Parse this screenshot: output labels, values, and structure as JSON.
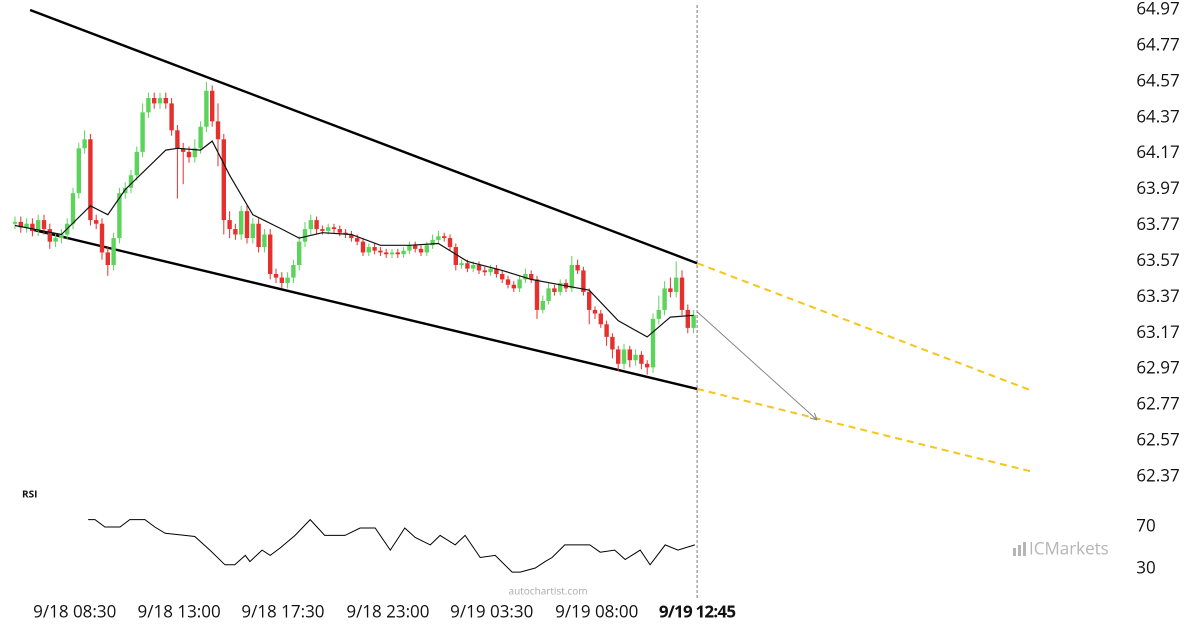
{
  "chart_data": [
    {
      "type": "candlestick",
      "up_color": "#5cd45c",
      "down_color": "#e6302e",
      "xlim": [
        -2.5,
        197.5
      ],
      "ylim": [
        62.25,
        65.0
      ],
      "yticks": [
        64.97,
        64.77,
        64.57,
        64.37,
        64.17,
        63.97,
        63.77,
        63.57,
        63.37,
        63.17,
        62.97,
        62.77,
        62.57,
        62.37
      ],
      "xticks": [
        {
          "value": 10.3,
          "label": "9/18 08:30"
        },
        {
          "value": 28.3,
          "label": "9/18 13:00"
        },
        {
          "value": 46.2,
          "label": "9/18 17:30"
        },
        {
          "value": 64.3,
          "label": "9/18 23:00"
        },
        {
          "value": 82.2,
          "label": "9/19 03:30"
        },
        {
          "value": 100.3,
          "label": "9/19 08:00"
        },
        {
          "value": 117.6,
          "label": "9/19 12:45"
        }
      ],
      "open": [
        63.78,
        63.79,
        63.76,
        63.78,
        63.74,
        63.8,
        63.75,
        63.68,
        63.7,
        63.72,
        63.78,
        63.95,
        64.2,
        64.25,
        63.8,
        63.78,
        63.62,
        63.55,
        63.7,
        63.95,
        63.98,
        64.05,
        64.18,
        64.4,
        64.48,
        64.45,
        64.48,
        64.45,
        64.3,
        64.2,
        64.18,
        64.15,
        64.2,
        64.32,
        64.52,
        64.35,
        64.25,
        63.8,
        63.75,
        63.72,
        63.85,
        63.7,
        63.78,
        63.65,
        63.72,
        63.5,
        63.48,
        63.45,
        63.48,
        63.55,
        63.68,
        63.75,
        63.8,
        63.75,
        63.74,
        63.76,
        63.75,
        63.73,
        63.72,
        63.7,
        63.68,
        63.62,
        63.65,
        63.63,
        63.62,
        63.61,
        63.62,
        63.61,
        63.63,
        63.66,
        63.64,
        63.62,
        63.66,
        63.69,
        63.71,
        63.7,
        63.65,
        63.55,
        63.56,
        63.53,
        63.55,
        63.52,
        63.51,
        63.53,
        63.5,
        63.47,
        63.44,
        63.42,
        63.47,
        63.5,
        63.47,
        63.3,
        63.35,
        63.42,
        63.4,
        63.45,
        63.42,
        63.55,
        63.52,
        63.4,
        63.3,
        63.28,
        63.22,
        63.15,
        63.08,
        63.0,
        63.08,
        63.02,
        63.05,
        63.0,
        62.98,
        63.25,
        63.3,
        63.42,
        63.4,
        63.48,
        63.3,
        63.2
      ],
      "high": [
        63.82,
        63.82,
        63.81,
        63.81,
        63.83,
        63.83,
        63.78,
        63.73,
        63.75,
        63.81,
        63.98,
        64.23,
        64.3,
        64.28,
        63.83,
        63.81,
        63.65,
        63.73,
        63.98,
        64.01,
        64.08,
        64.21,
        64.45,
        64.51,
        64.51,
        64.51,
        64.51,
        64.48,
        64.33,
        64.23,
        64.21,
        64.25,
        64.35,
        64.57,
        64.55,
        64.45,
        64.28,
        63.85,
        63.78,
        63.88,
        63.88,
        63.81,
        63.81,
        63.75,
        63.75,
        63.53,
        63.51,
        63.51,
        63.58,
        63.71,
        63.79,
        63.83,
        63.82,
        63.77,
        63.78,
        63.78,
        63.77,
        63.75,
        63.74,
        63.72,
        63.7,
        63.67,
        63.67,
        63.65,
        63.64,
        63.64,
        63.64,
        63.65,
        63.68,
        63.68,
        63.66,
        63.68,
        63.72,
        63.74,
        63.73,
        63.72,
        63.67,
        63.58,
        63.58,
        63.57,
        63.57,
        63.54,
        63.55,
        63.55,
        63.52,
        63.49,
        63.46,
        63.49,
        63.53,
        63.52,
        63.49,
        63.38,
        63.45,
        63.44,
        63.47,
        63.47,
        63.6,
        63.58,
        63.54,
        63.42,
        63.32,
        63.3,
        63.24,
        63.17,
        63.1,
        63.11,
        63.1,
        63.08,
        63.07,
        63.02,
        63.28,
        63.38,
        63.46,
        63.48,
        63.57,
        63.52,
        63.33,
        63.3
      ],
      "low": [
        63.75,
        63.73,
        63.73,
        63.71,
        63.71,
        63.72,
        63.64,
        63.65,
        63.67,
        63.69,
        63.75,
        63.92,
        64.17,
        63.77,
        63.75,
        63.58,
        63.49,
        63.52,
        63.67,
        63.92,
        63.95,
        64.02,
        64.15,
        64.37,
        64.42,
        64.42,
        64.42,
        64.27,
        63.92,
        64.0,
        64.12,
        64.12,
        64.17,
        64.29,
        64.32,
        64.1,
        63.72,
        63.7,
        63.69,
        63.69,
        63.67,
        63.67,
        63.62,
        63.62,
        63.47,
        63.45,
        63.42,
        63.42,
        63.45,
        63.52,
        63.65,
        63.72,
        63.72,
        63.72,
        63.72,
        63.73,
        63.71,
        63.7,
        63.68,
        63.66,
        63.6,
        63.6,
        63.61,
        63.6,
        63.59,
        63.59,
        63.59,
        63.59,
        63.61,
        63.62,
        63.6,
        63.6,
        63.64,
        63.67,
        63.68,
        63.63,
        63.52,
        63.53,
        63.51,
        63.51,
        63.5,
        63.49,
        63.49,
        63.48,
        63.45,
        63.42,
        63.4,
        63.4,
        63.45,
        63.45,
        63.25,
        63.28,
        63.33,
        63.38,
        63.38,
        63.4,
        63.4,
        63.5,
        63.38,
        63.22,
        63.25,
        63.2,
        63.1,
        63.03,
        62.96,
        62.97,
        62.98,
        62.99,
        62.97,
        62.94,
        62.95,
        63.22,
        63.27,
        63.37,
        63.37,
        63.27,
        63.17,
        63.17
      ],
      "close": [
        63.79,
        63.76,
        63.78,
        63.74,
        63.8,
        63.75,
        63.68,
        63.7,
        63.72,
        63.78,
        63.95,
        64.2,
        64.25,
        63.8,
        63.78,
        63.62,
        63.55,
        63.7,
        63.95,
        63.98,
        64.05,
        64.18,
        64.4,
        64.48,
        64.45,
        64.48,
        64.45,
        64.3,
        64.2,
        64.18,
        64.15,
        64.2,
        64.32,
        64.52,
        64.35,
        64.25,
        63.8,
        63.75,
        63.72,
        63.85,
        63.7,
        63.78,
        63.65,
        63.72,
        63.5,
        63.48,
        63.45,
        63.48,
        63.55,
        63.68,
        63.75,
        63.8,
        63.75,
        63.74,
        63.76,
        63.75,
        63.73,
        63.72,
        63.7,
        63.68,
        63.62,
        63.65,
        63.63,
        63.62,
        63.61,
        63.62,
        63.61,
        63.63,
        63.66,
        63.64,
        63.62,
        63.66,
        63.69,
        63.71,
        63.7,
        63.65,
        63.55,
        63.56,
        63.53,
        63.55,
        63.52,
        63.51,
        63.53,
        63.5,
        63.47,
        63.44,
        63.42,
        63.47,
        63.5,
        63.47,
        63.3,
        63.35,
        63.42,
        63.4,
        63.45,
        63.42,
        63.55,
        63.52,
        63.4,
        63.3,
        63.28,
        63.22,
        63.15,
        63.08,
        63.0,
        63.08,
        63.02,
        63.05,
        63.0,
        62.98,
        63.25,
        63.3,
        63.42,
        63.4,
        63.48,
        63.3,
        63.2,
        63.27
      ],
      "ma": {
        "color": "#111111",
        "x": [
          0,
          8,
          13,
          16,
          19,
          26,
          28,
          32,
          34,
          37,
          41,
          46,
          49,
          53,
          58,
          63,
          68,
          73,
          78,
          84,
          89,
          94,
          99,
          104,
          109,
          113,
          117
        ],
        "values": [
          63.77,
          63.72,
          63.88,
          63.83,
          63.97,
          64.19,
          64.2,
          64.19,
          64.24,
          64.05,
          63.83,
          63.75,
          63.7,
          63.73,
          63.72,
          63.66,
          63.66,
          63.67,
          63.57,
          63.52,
          63.47,
          63.44,
          63.41,
          63.24,
          63.15,
          63.26,
          63.27
        ]
      },
      "lines": [
        {
          "color": "#000000",
          "dash": false,
          "x": [
            2.6,
            117.6
          ],
          "values": [
            64.97,
            63.56
          ]
        },
        {
          "color": "#000000",
          "dash": false,
          "x": [
            2.6,
            117.6
          ],
          "values": [
            63.75,
            62.86
          ]
        },
        {
          "color": "#f5c518",
          "dash": true,
          "x": [
            117.6,
            175.3
          ],
          "values": [
            63.56,
            62.85
          ]
        },
        {
          "color": "#f5c518",
          "dash": true,
          "x": [
            117.6,
            175.3
          ],
          "values": [
            62.86,
            62.4
          ]
        }
      ],
      "arrow": {
        "color": "#888888",
        "x": [
          117.6,
          138.2
        ],
        "values": [
          63.29,
          62.69
        ]
      }
    },
    {
      "type": "line",
      "title": "RSI",
      "color": "#000000",
      "ylim": [
        0,
        100
      ],
      "yticks": [
        70,
        30
      ],
      "x": [
        12.6,
        13.8,
        15.5,
        18.1,
        19.8,
        22.4,
        24.1,
        25.9,
        29.3,
        31.0,
        33.6,
        36.2,
        37.9,
        39.7,
        40.5,
        42.6,
        44.0,
        45.7,
        48.3,
        50.9,
        53.4,
        56.9,
        59.5,
        62.1,
        64.7,
        67.2,
        69.0,
        71.6,
        73.3,
        75.9,
        77.6,
        80.2,
        82.8,
        85.7,
        87.1,
        89.7,
        91.4,
        92.6,
        94.8,
        99.1,
        100.9,
        103.4,
        105.2,
        107.8,
        109.5,
        112.1,
        114.3,
        117.2
      ],
      "values": [
        77,
        77,
        70,
        70,
        77,
        77,
        70,
        64,
        62,
        61,
        48,
        34,
        34,
        43,
        37,
        48,
        43,
        50,
        62,
        77,
        62,
        62,
        69,
        69,
        48,
        69,
        60,
        53,
        62,
        53,
        62,
        41,
        43,
        27,
        27,
        31,
        37,
        41,
        53,
        53,
        46,
        48,
        39,
        48,
        34,
        53,
        48,
        53
      ]
    }
  ],
  "watermark": "autochartist.com",
  "logo": "ICMarkets"
}
